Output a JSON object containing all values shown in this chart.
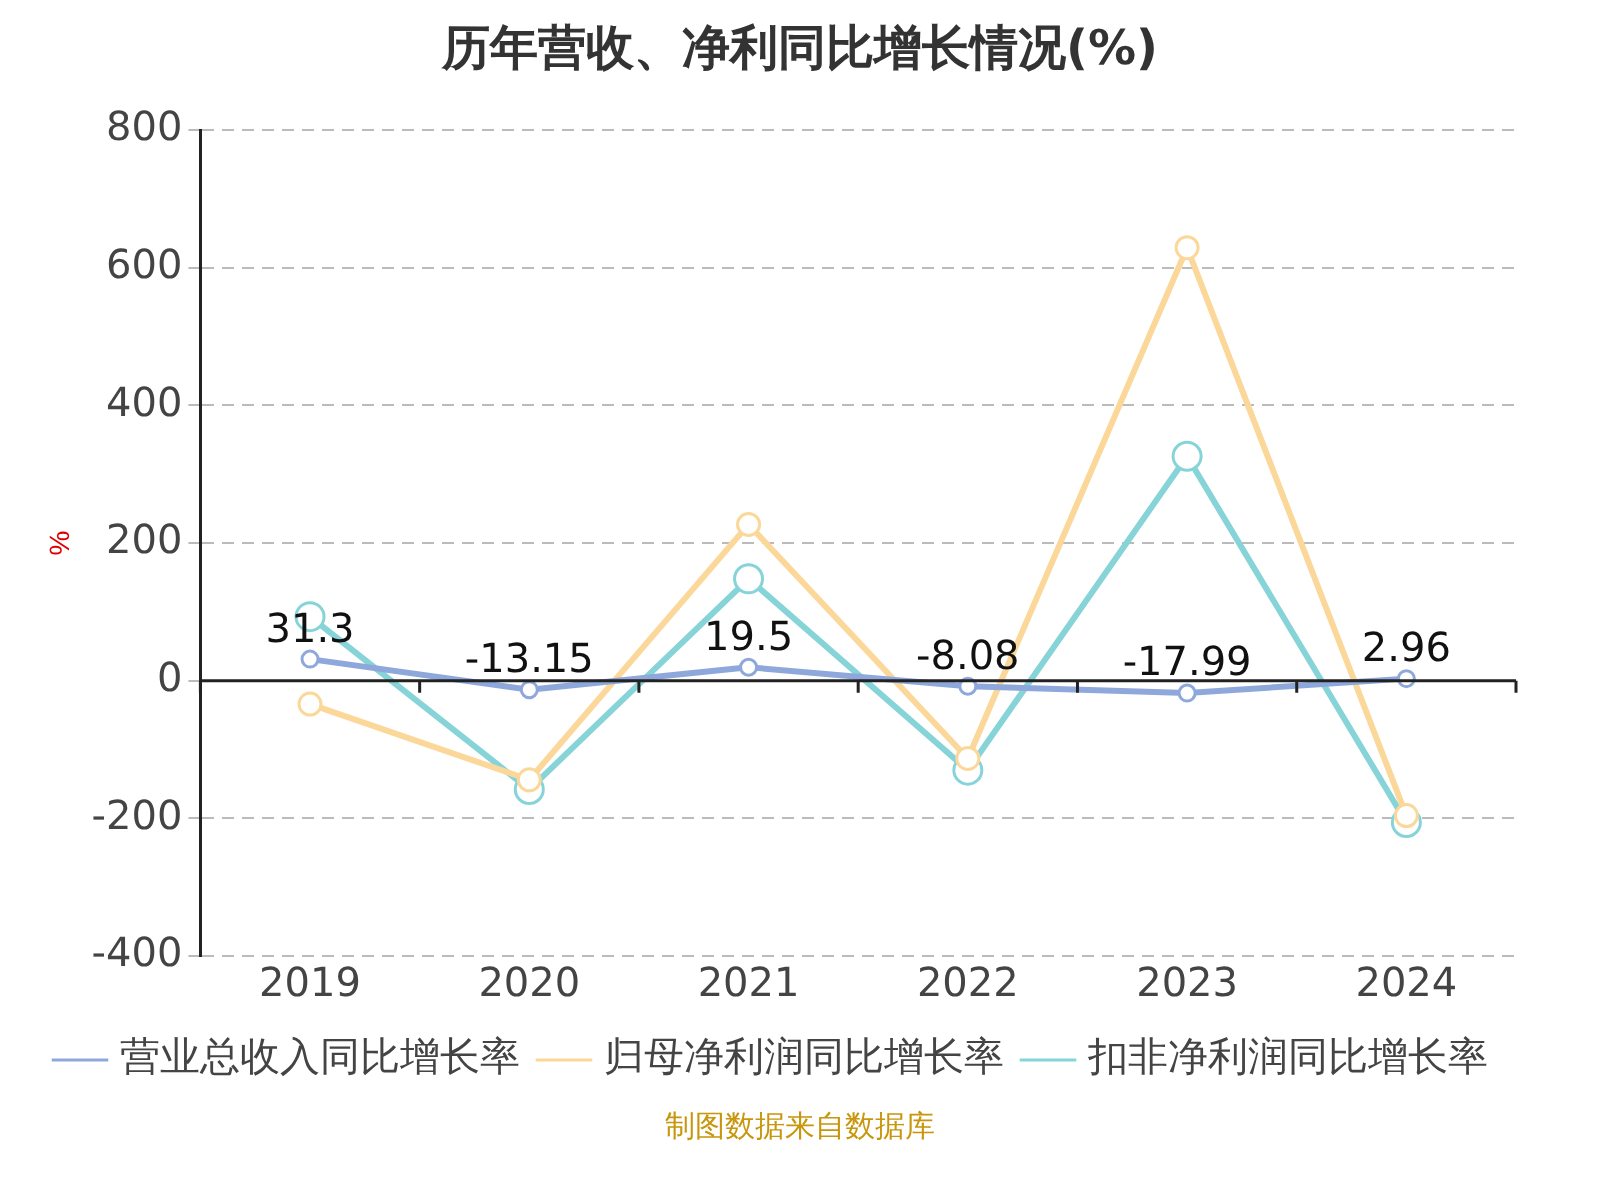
{
  "chart_data": {
    "type": "line",
    "title": "历年营收、净利同比增长情况(%)",
    "ylabel": "%",
    "categories": [
      "2019",
      "2020",
      "2021",
      "2022",
      "2023",
      "2024"
    ],
    "series": [
      {
        "name": "营业总收入同比增长率",
        "color": "#8fa8dc",
        "values": [
          31.3,
          -13.15,
          19.5,
          -8.08,
          -17.99,
          2.96
        ],
        "value_labels": [
          "31.3",
          "-13.15",
          "19.5",
          "-8.08",
          "-17.99",
          "2.96"
        ]
      },
      {
        "name": "归母净利润同比增长率",
        "color": "#fbd89a",
        "values": [
          -34,
          -144,
          227,
          -113,
          629,
          -196
        ]
      },
      {
        "name": "扣非净利润同比增长率",
        "color": "#86d4d8",
        "values": [
          93,
          -158,
          148,
          -130,
          326,
          -206
        ]
      }
    ],
    "ylim": [
      -400,
      800
    ],
    "yticks": [
      -400,
      -200,
      0,
      200,
      400,
      600,
      800
    ],
    "grid": "y",
    "legend": "bottom",
    "marker": "circle",
    "line_style": "solid",
    "annotations": [
      "制图数据来自数据库"
    ]
  }
}
